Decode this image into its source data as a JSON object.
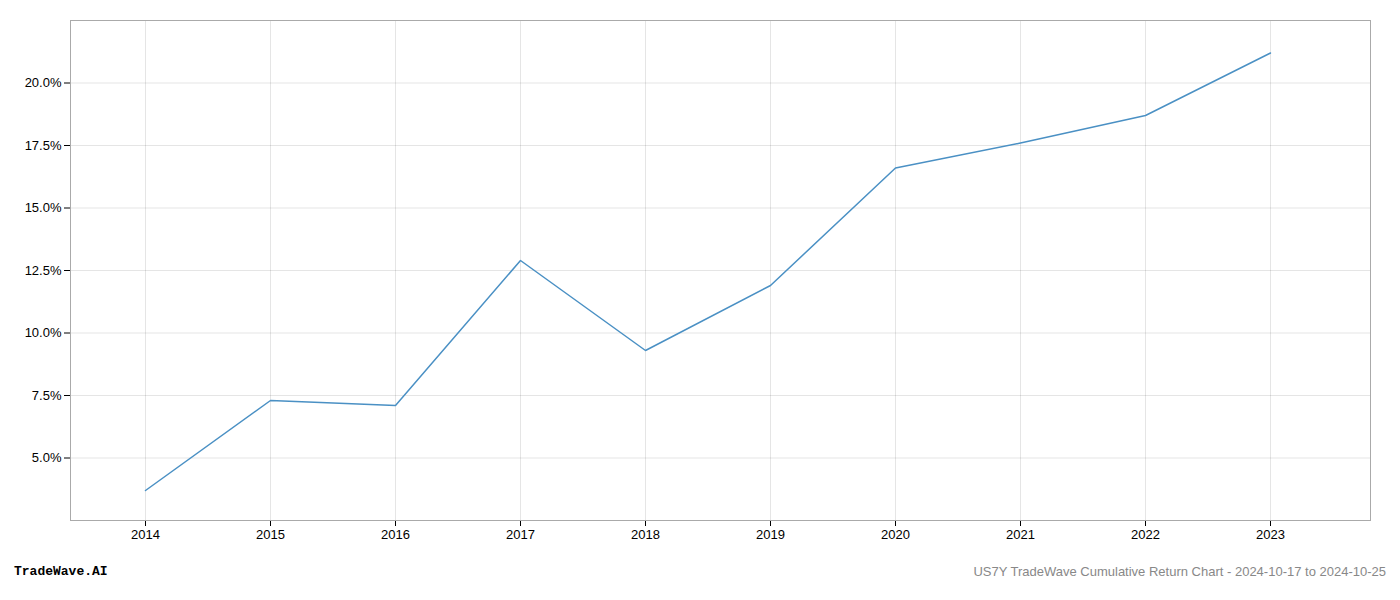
{
  "chart_data": {
    "type": "line",
    "x": [
      2014,
      2015,
      2016,
      2017,
      2018,
      2019,
      2020,
      2021,
      2022,
      2023
    ],
    "values": [
      3.7,
      7.3,
      7.1,
      12.9,
      9.3,
      11.9,
      16.6,
      17.6,
      18.7,
      21.2
    ],
    "color": "#4a90c4",
    "xlim": [
      2013.4,
      2023.8
    ],
    "ylim": [
      2.5,
      22.5
    ],
    "xticks": [
      2014,
      2015,
      2016,
      2017,
      2018,
      2019,
      2020,
      2021,
      2022,
      2023
    ],
    "yticks": [
      {
        "value": 5.0,
        "label": "5.0%"
      },
      {
        "value": 7.5,
        "label": "7.5%"
      },
      {
        "value": 10.0,
        "label": "10.0%"
      },
      {
        "value": 12.5,
        "label": "12.5%"
      },
      {
        "value": 15.0,
        "label": "15.0%"
      },
      {
        "value": 17.5,
        "label": "17.5%"
      },
      {
        "value": 20.0,
        "label": "20.0%"
      }
    ],
    "grid": true,
    "annotations": [
      "TradeWave.AI",
      "US7Y TradeWave Cumulative Return Chart - 2024-10-17 to 2024-10-25"
    ]
  }
}
